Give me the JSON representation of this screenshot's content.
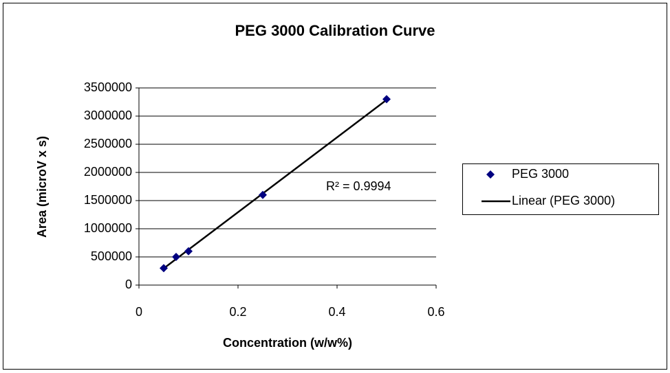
{
  "chart_data": {
    "type": "scatter",
    "title": "PEG 3000 Calibration Curve",
    "xlabel": "Concentration (w/w%)",
    "ylabel": "Area (microV x s)",
    "x": [
      0.05,
      0.075,
      0.1,
      0.25,
      0.5
    ],
    "series": [
      {
        "name": "PEG 3000",
        "color": "#000080",
        "values": [
          300000,
          500000,
          600000,
          1600000,
          3300000
        ]
      }
    ],
    "trendline": {
      "name": "Linear (PEG 3000)",
      "color": "#000000"
    },
    "annotation": "R² = 0.9994",
    "xlim": [
      0,
      0.6
    ],
    "xticks": [
      0,
      0.2,
      0.4,
      0.6
    ],
    "ylim": [
      0,
      3500000
    ],
    "yticks": [
      0,
      500000,
      1000000,
      1500000,
      2000000,
      2500000,
      3000000,
      3500000
    ],
    "grid": true,
    "legend": "right"
  }
}
